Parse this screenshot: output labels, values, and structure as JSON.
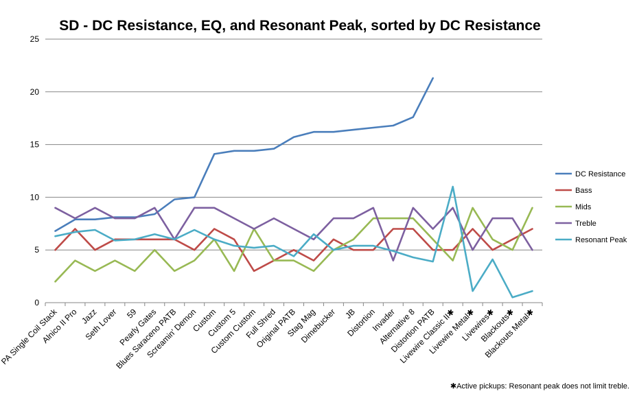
{
  "chart_data": {
    "type": "line",
    "title": "SD - DC Resistance, EQ, and Resonant Peak, sorted by DC Resistance",
    "xlabel": "",
    "ylabel": "",
    "ylim": [
      0,
      25
    ],
    "yticks": [
      0,
      5,
      10,
      15,
      20,
      25
    ],
    "grid": true,
    "legend_position": "right",
    "categories": [
      "PA Single Coil Stack",
      "Alnico II Pro",
      "Jazz",
      "Seth Lover",
      "59",
      "Pearly Gates",
      "Blues Saraceno PATB",
      "Screamin' Demon",
      "Custom",
      "Custom 5",
      "Custom Custom",
      "Full Shred",
      "Original PATB",
      "Stag Mag",
      "Dimebucker",
      "JB",
      "Distortion",
      "Invader",
      "Alternative 8",
      "Distortion PATB",
      "Livewire Classic II✱",
      "Livewire Metal✱",
      "Livewires✱",
      "Blackouts✱",
      "Blackouts Metal✱"
    ],
    "series": [
      {
        "name": "DC Resistance",
        "color": "#4a7ebb",
        "values": [
          6.8,
          7.9,
          7.9,
          8.1,
          8.1,
          8.4,
          9.8,
          10,
          14.1,
          14.4,
          14.4,
          14.6,
          15.7,
          16.2,
          16.2,
          16.4,
          16.6,
          16.8,
          17.6,
          21.3,
          null,
          null,
          null,
          null,
          null
        ]
      },
      {
        "name": "Bass",
        "color": "#be4b48",
        "values": [
          5,
          7,
          5,
          6,
          6,
          6,
          6,
          5,
          7,
          6,
          3,
          4,
          5,
          4,
          6,
          5,
          5,
          7,
          7,
          5,
          5,
          7,
          5,
          6,
          7
        ]
      },
      {
        "name": "Mids",
        "color": "#98b954",
        "values": [
          2,
          4,
          3,
          4,
          3,
          5,
          3,
          4,
          6,
          3,
          7,
          4,
          4,
          3,
          5,
          6,
          8,
          8,
          8,
          6,
          4,
          9,
          6,
          5,
          9
        ]
      },
      {
        "name": "Treble",
        "color": "#7d60a0",
        "values": [
          9,
          8,
          9,
          8,
          8,
          9,
          6,
          9,
          9,
          8,
          7,
          8,
          7,
          6,
          8,
          8,
          9,
          4,
          9,
          7,
          9,
          5,
          8,
          8,
          5
        ]
      },
      {
        "name": "Resonant Peak",
        "color": "#4bacc6",
        "values": [
          6.3,
          6.7,
          6.9,
          5.9,
          6,
          6.5,
          6,
          6.9,
          6,
          5.4,
          5.2,
          5.4,
          4.4,
          6.5,
          5,
          5.4,
          5.4,
          4.9,
          4.3,
          3.9,
          11,
          1.1,
          4.1,
          0.5,
          1.1
        ]
      }
    ],
    "annotations": [
      "✱Active pickups: Resonant peak does not limit treble."
    ]
  }
}
